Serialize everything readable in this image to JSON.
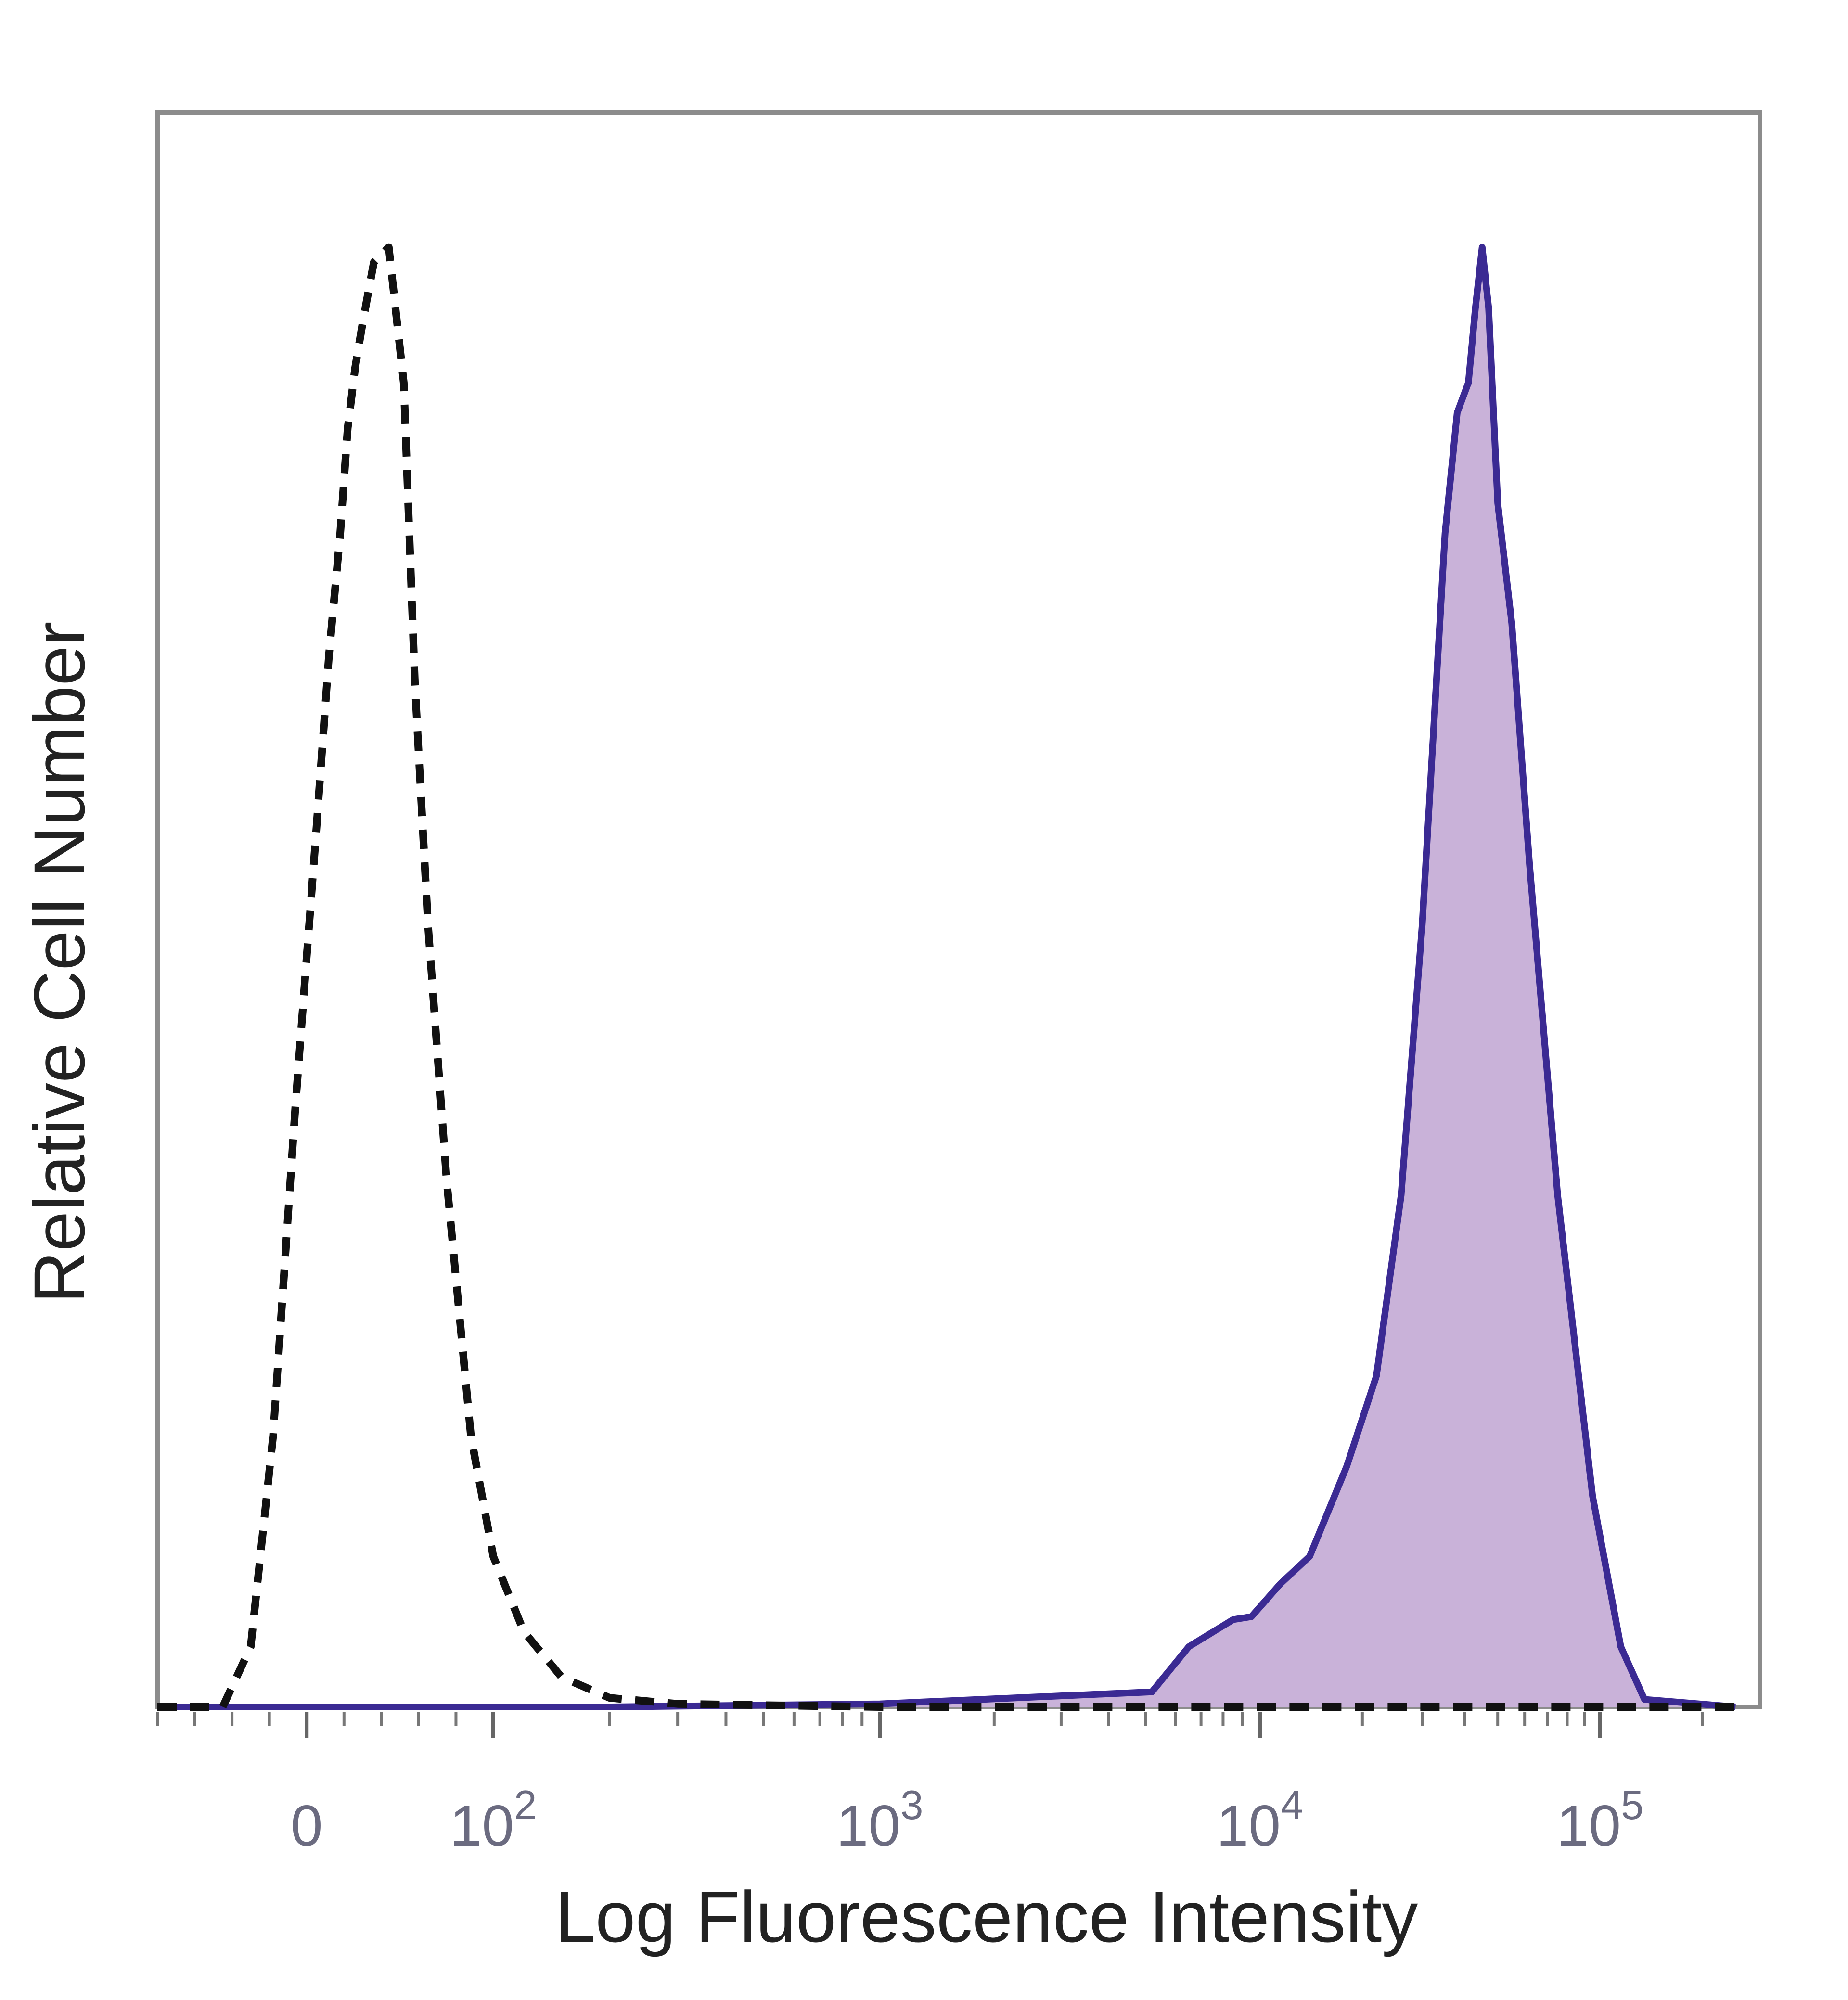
{
  "chart_data": {
    "type": "area",
    "xlabel": "Log Fluorescence Intensity",
    "ylabel": "Relative Cell Number",
    "x_scale": "biexponential (linear near 0, logarithmic above 10^2)",
    "xlim": [
      -80,
      250000
    ],
    "ylim": [
      0,
      1.0
    ],
    "grid": false,
    "legend": "none",
    "x_ticks": [
      {
        "value": 0,
        "base": "0",
        "exp": ""
      },
      {
        "value": 100,
        "base": "10",
        "exp": "2"
      },
      {
        "value": 1000,
        "base": "10",
        "exp": "3"
      },
      {
        "value": 10000,
        "base": "10",
        "exp": "4"
      },
      {
        "value": 100000,
        "base": "10",
        "exp": "5"
      }
    ],
    "series": [
      {
        "style": "dashed outline, unfilled",
        "color": "#111111",
        "x": [
          -80,
          -45,
          -30,
          -18,
          -6,
          5,
          12,
          18,
          22,
          26,
          30,
          36,
          44,
          52,
          58,
          65,
          75,
          88,
          100,
          120,
          150,
          200,
          300,
          1000,
          10000,
          250000
        ],
        "y": [
          0.0,
          0.0,
          0.04,
          0.18,
          0.4,
          0.58,
          0.7,
          0.78,
          0.85,
          0.89,
          0.92,
          0.96,
          0.97,
          0.88,
          0.68,
          0.52,
          0.35,
          0.18,
          0.1,
          0.05,
          0.02,
          0.006,
          0.002,
          0.0,
          0.0,
          0.0
        ]
      },
      {
        "style": "solid outline, filled",
        "color": "#3b2a93",
        "fill": "#c9b2d9",
        "x": [
          -80,
          200,
          1000,
          5200,
          6500,
          8500,
          9500,
          11500,
          14000,
          18000,
          22000,
          26000,
          30000,
          35000,
          38000,
          41000,
          43000,
          45000,
          47000,
          50000,
          55000,
          62000,
          75000,
          95000,
          115000,
          135000,
          250000
        ],
        "y": [
          0.0,
          0.0,
          0.002,
          0.01,
          0.04,
          0.058,
          0.06,
          0.082,
          0.1,
          0.16,
          0.22,
          0.34,
          0.52,
          0.78,
          0.86,
          0.88,
          0.93,
          0.97,
          0.93,
          0.8,
          0.72,
          0.56,
          0.34,
          0.14,
          0.04,
          0.005,
          0.0
        ]
      }
    ]
  }
}
